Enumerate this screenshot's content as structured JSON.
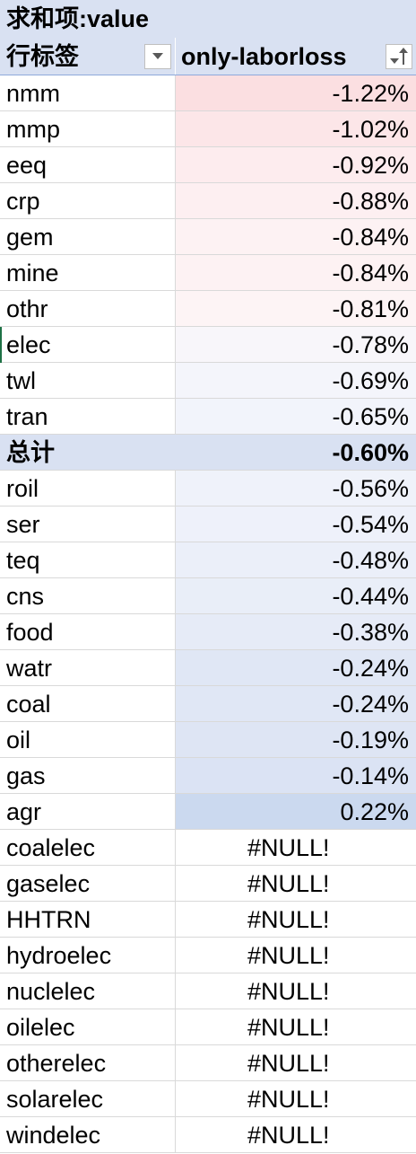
{
  "pivot": {
    "header_title": "求和项:value",
    "row_label_header": "行标签",
    "value_header": "only-laborloss",
    "rows": [
      {
        "label": "nmm",
        "value": "-1.22%",
        "bg": "#fbdfe1"
      },
      {
        "label": "mmp",
        "value": "-1.02%",
        "bg": "#fce6e8"
      },
      {
        "label": "eeq",
        "value": "-0.92%",
        "bg": "#fdecee"
      },
      {
        "label": "crp",
        "value": "-0.88%",
        "bg": "#fdeff1"
      },
      {
        "label": "gem",
        "value": "-0.84%",
        "bg": "#fdf2f3"
      },
      {
        "label": "mine",
        "value": "-0.84%",
        "bg": "#fdf2f3"
      },
      {
        "label": "othr",
        "value": "-0.81%",
        "bg": "#fdf4f5"
      },
      {
        "label": "elec",
        "value": "-0.78%",
        "bg": "#f8f6fa"
      },
      {
        "label": "twl",
        "value": "-0.69%",
        "bg": "#f4f5fb"
      },
      {
        "label": "tran",
        "value": "-0.65%",
        "bg": "#f2f4fb"
      }
    ],
    "total": {
      "label": "总计",
      "value": "-0.60%"
    },
    "rows_after": [
      {
        "label": "roil",
        "value": "-0.56%",
        "bg": "#eff2fa"
      },
      {
        "label": "ser",
        "value": "-0.54%",
        "bg": "#eef1fa"
      },
      {
        "label": "teq",
        "value": "-0.48%",
        "bg": "#ebeff9"
      },
      {
        "label": "cns",
        "value": "-0.44%",
        "bg": "#e9eef8"
      },
      {
        "label": "food",
        "value": "-0.38%",
        "bg": "#e6ebf7"
      },
      {
        "label": "watr",
        "value": "-0.24%",
        "bg": "#e0e7f5"
      },
      {
        "label": "coal",
        "value": "-0.24%",
        "bg": "#e0e7f5"
      },
      {
        "label": "oil",
        "value": "-0.19%",
        "bg": "#dee5f4"
      },
      {
        "label": "gas",
        "value": "-0.14%",
        "bg": "#dbe3f4"
      },
      {
        "label": "agr",
        "value": "0.22%",
        "bg": "#cbd9ef"
      }
    ],
    "null_rows": [
      {
        "label": "coalelec",
        "value": "#NULL!"
      },
      {
        "label": "gaselec",
        "value": "#NULL!"
      },
      {
        "label": "HHTRN",
        "value": "#NULL!"
      },
      {
        "label": "hydroelec",
        "value": "#NULL!"
      },
      {
        "label": "nuclelec",
        "value": "#NULL!"
      },
      {
        "label": "oilelec",
        "value": "#NULL!"
      },
      {
        "label": "otherelec",
        "value": "#NULL!"
      },
      {
        "label": "solarelec",
        "value": "#NULL!"
      },
      {
        "label": "windelec",
        "value": "#NULL!"
      }
    ]
  }
}
